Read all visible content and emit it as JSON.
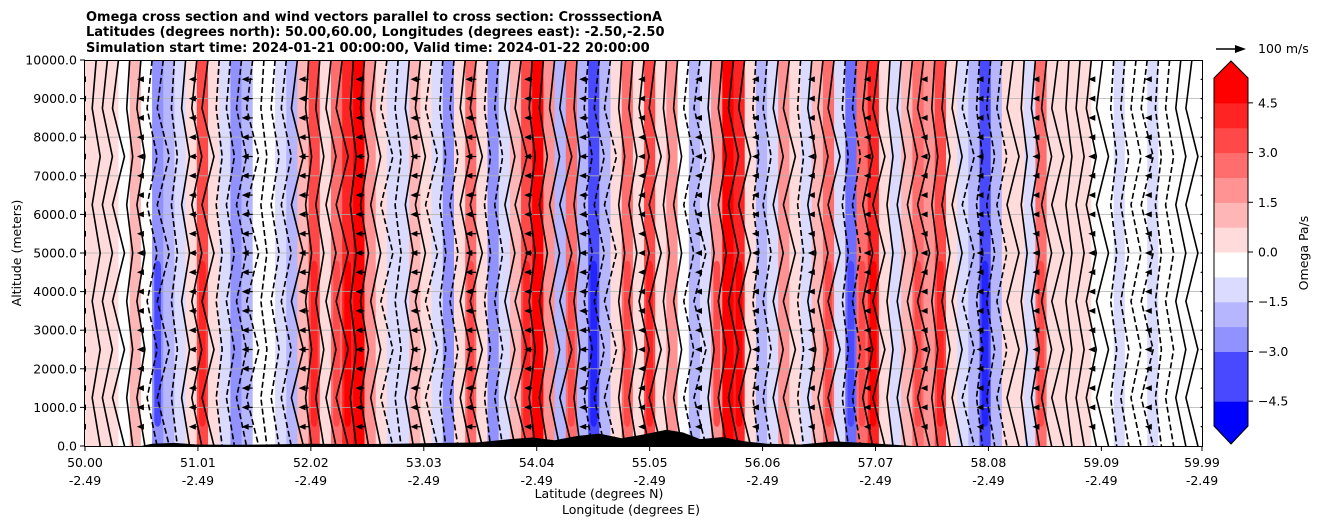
{
  "chart_data": {
    "type": "heatmap",
    "title_lines": [
      "Omega cross section and wind vectors parallel to cross section: CrosssectionA",
      "Latitudes (degrees north): 50.00,60.00, Longitudes (degrees east): -2.50,-2.50",
      "Simulation start time: 2024-01-21 00:00:00, Valid time: 2024-01-22 20:00:00"
    ],
    "xlabel_lines": [
      "Latitude (degrees N)",
      "Longitude (degrees E)"
    ],
    "ylabel": "Altitude (meters)",
    "x_ticks": [
      {
        "lat": "50.00",
        "lon": "-2.49",
        "value": 50.0
      },
      {
        "lat": "51.01",
        "lon": "-2.49",
        "value": 51.01
      },
      {
        "lat": "52.02",
        "lon": "-2.49",
        "value": 52.02
      },
      {
        "lat": "53.03",
        "lon": "-2.49",
        "value": 53.03
      },
      {
        "lat": "54.04",
        "lon": "-2.49",
        "value": 54.04
      },
      {
        "lat": "55.05",
        "lon": "-2.49",
        "value": 55.05
      },
      {
        "lat": "56.06",
        "lon": "-2.49",
        "value": 56.06
      },
      {
        "lat": "57.07",
        "lon": "-2.49",
        "value": 57.07
      },
      {
        "lat": "58.08",
        "lon": "-2.49",
        "value": 58.08
      },
      {
        "lat": "59.09",
        "lon": "-2.49",
        "value": 59.09
      },
      {
        "lat": "59.99",
        "lon": "-2.49",
        "value": 59.99
      }
    ],
    "y_ticks": [
      {
        "label": "0.0",
        "value": 0
      },
      {
        "label": "1000.0",
        "value": 1000
      },
      {
        "label": "2000.0",
        "value": 2000
      },
      {
        "label": "3000.0",
        "value": 3000
      },
      {
        "label": "4000.0",
        "value": 4000
      },
      {
        "label": "5000.0",
        "value": 5000
      },
      {
        "label": "6000.0",
        "value": 6000
      },
      {
        "label": "7000.0",
        "value": 7000
      },
      {
        "label": "8000.0",
        "value": 8000
      },
      {
        "label": "9000.0",
        "value": 9000
      },
      {
        "label": "10000.0",
        "value": 10000
      }
    ],
    "xlim": [
      50.0,
      59.99
    ],
    "ylim": [
      0,
      10000
    ],
    "grid": "horizontal",
    "colorbar": {
      "label": "Omega Pa/s",
      "vmin": -5.25,
      "vmax": 5.25,
      "extend": "both",
      "ticks": [
        {
          "label": "4.5",
          "value": 4.5
        },
        {
          "label": "3.0",
          "value": 3.0
        },
        {
          "label": "1.5",
          "value": 1.5
        },
        {
          "label": "0.0",
          "value": 0.0
        },
        {
          "label": "−1.5",
          "value": -1.5
        },
        {
          "label": "−3.0",
          "value": -3.0
        },
        {
          "label": "−4.5",
          "value": -4.5
        }
      ],
      "colors": {
        "negative": "#0000ff",
        "zero": "#ffffff",
        "positive": "#ff0000"
      }
    },
    "quiver_key": {
      "label": "100 m/s",
      "speed": 100
    },
    "omega_columns": [
      {
        "lat": 50.0,
        "value": 0.4
      },
      {
        "lat": 50.1,
        "value": 0.6
      },
      {
        "lat": 50.2,
        "value": 0.9
      },
      {
        "lat": 50.3,
        "value": 0.2
      },
      {
        "lat": 50.4,
        "value": 1.6
      },
      {
        "lat": 50.5,
        "value": 0.1
      },
      {
        "lat": 50.6,
        "value": -2.6
      },
      {
        "lat": 50.7,
        "value": -1.4
      },
      {
        "lat": 50.8,
        "value": -0.6
      },
      {
        "lat": 50.9,
        "value": 1.0
      },
      {
        "lat": 51.0,
        "value": 3.4
      },
      {
        "lat": 51.1,
        "value": 0.8
      },
      {
        "lat": 51.2,
        "value": -0.9
      },
      {
        "lat": 51.3,
        "value": -2.2
      },
      {
        "lat": 51.4,
        "value": -1.2
      },
      {
        "lat": 51.5,
        "value": -0.3
      },
      {
        "lat": 51.6,
        "value": 0.2
      },
      {
        "lat": 51.7,
        "value": -0.4
      },
      {
        "lat": 51.8,
        "value": -1.6
      },
      {
        "lat": 51.9,
        "value": 1.8
      },
      {
        "lat": 52.0,
        "value": 3.6
      },
      {
        "lat": 52.1,
        "value": 0.9
      },
      {
        "lat": 52.2,
        "value": 2.8
      },
      {
        "lat": 52.3,
        "value": 4.6
      },
      {
        "lat": 52.4,
        "value": 5.4
      },
      {
        "lat": 52.5,
        "value": 2.4
      },
      {
        "lat": 52.6,
        "value": 0.6
      },
      {
        "lat": 52.7,
        "value": -1.1
      },
      {
        "lat": 52.8,
        "value": -0.5
      },
      {
        "lat": 52.9,
        "value": 1.2
      },
      {
        "lat": 53.0,
        "value": 0.4
      },
      {
        "lat": 53.1,
        "value": -0.9
      },
      {
        "lat": 53.2,
        "value": -1.9
      },
      {
        "lat": 53.3,
        "value": 0.8
      },
      {
        "lat": 53.4,
        "value": 3.1
      },
      {
        "lat": 53.5,
        "value": 0.5
      },
      {
        "lat": 53.6,
        "value": -2.0
      },
      {
        "lat": 53.7,
        "value": -0.6
      },
      {
        "lat": 53.8,
        "value": 1.4
      },
      {
        "lat": 53.9,
        "value": 3.8
      },
      {
        "lat": 54.0,
        "value": 5.2
      },
      {
        "lat": 54.1,
        "value": 2.2
      },
      {
        "lat": 54.2,
        "value": -1.2
      },
      {
        "lat": 54.3,
        "value": 3.3
      },
      {
        "lat": 54.4,
        "value": -1.5
      },
      {
        "lat": 54.5,
        "value": -3.6
      },
      {
        "lat": 54.6,
        "value": -1.4
      },
      {
        "lat": 54.7,
        "value": 0.7
      },
      {
        "lat": 54.8,
        "value": 2.9
      },
      {
        "lat": 54.9,
        "value": 0.9
      },
      {
        "lat": 55.0,
        "value": 3.8
      },
      {
        "lat": 55.1,
        "value": 1.0
      },
      {
        "lat": 55.2,
        "value": 2.2
      },
      {
        "lat": 55.3,
        "value": 0.3
      },
      {
        "lat": 55.4,
        "value": -1.6
      },
      {
        "lat": 55.5,
        "value": -0.6
      },
      {
        "lat": 55.6,
        "value": 2.6
      },
      {
        "lat": 55.7,
        "value": 5.1
      },
      {
        "lat": 55.8,
        "value": 4.2
      },
      {
        "lat": 55.9,
        "value": 1.1
      },
      {
        "lat": 56.0,
        "value": -1.5
      },
      {
        "lat": 56.1,
        "value": -0.4
      },
      {
        "lat": 56.2,
        "value": 2.3
      },
      {
        "lat": 56.3,
        "value": 0.4
      },
      {
        "lat": 56.4,
        "value": -0.8
      },
      {
        "lat": 56.5,
        "value": 1.3
      },
      {
        "lat": 56.6,
        "value": 2.9
      },
      {
        "lat": 56.7,
        "value": -0.7
      },
      {
        "lat": 56.8,
        "value": -3.2
      },
      {
        "lat": 56.9,
        "value": 2.9
      },
      {
        "lat": 57.0,
        "value": 4.2
      },
      {
        "lat": 57.1,
        "value": 1.0
      },
      {
        "lat": 57.2,
        "value": -1.0
      },
      {
        "lat": 57.3,
        "value": 1.8
      },
      {
        "lat": 57.4,
        "value": 3.2
      },
      {
        "lat": 57.5,
        "value": 2.1
      },
      {
        "lat": 57.6,
        "value": 3.6
      },
      {
        "lat": 57.7,
        "value": 0.6
      },
      {
        "lat": 57.8,
        "value": -0.4
      },
      {
        "lat": 57.9,
        "value": -1.4
      },
      {
        "lat": 58.0,
        "value": -3.9
      },
      {
        "lat": 58.1,
        "value": -1.6
      },
      {
        "lat": 58.2,
        "value": 0.5
      },
      {
        "lat": 58.3,
        "value": 1.0
      },
      {
        "lat": 58.4,
        "value": -0.5
      },
      {
        "lat": 58.5,
        "value": 3.1
      },
      {
        "lat": 58.6,
        "value": 1.1
      },
      {
        "lat": 58.7,
        "value": 0.6
      },
      {
        "lat": 58.8,
        "value": 0.8
      },
      {
        "lat": 58.9,
        "value": 0.5
      },
      {
        "lat": 59.0,
        "value": 0.3
      },
      {
        "lat": 59.1,
        "value": -0.2
      },
      {
        "lat": 59.2,
        "value": -0.6
      },
      {
        "lat": 59.3,
        "value": -0.3
      },
      {
        "lat": 59.4,
        "value": 0.1
      },
      {
        "lat": 59.5,
        "value": -0.9
      },
      {
        "lat": 59.6,
        "value": -0.3
      },
      {
        "lat": 59.7,
        "value": 0.2
      },
      {
        "lat": 59.8,
        "value": 0.1
      },
      {
        "lat": 59.9,
        "value": 0.0
      }
    ],
    "terrain": [
      {
        "lat": 50.0,
        "height": 0
      },
      {
        "lat": 50.5,
        "height": 0
      },
      {
        "lat": 50.6,
        "height": 60
      },
      {
        "lat": 50.8,
        "height": 80
      },
      {
        "lat": 51.0,
        "height": 40
      },
      {
        "lat": 51.3,
        "height": 30
      },
      {
        "lat": 51.6,
        "height": 40
      },
      {
        "lat": 52.0,
        "height": 60
      },
      {
        "lat": 52.4,
        "height": 50
      },
      {
        "lat": 52.8,
        "height": 60
      },
      {
        "lat": 53.2,
        "height": 80
      },
      {
        "lat": 53.5,
        "height": 90
      },
      {
        "lat": 53.8,
        "height": 180
      },
      {
        "lat": 54.0,
        "height": 220
      },
      {
        "lat": 54.2,
        "height": 150
      },
      {
        "lat": 54.4,
        "height": 260
      },
      {
        "lat": 54.6,
        "height": 320
      },
      {
        "lat": 54.8,
        "height": 200
      },
      {
        "lat": 55.0,
        "height": 300
      },
      {
        "lat": 55.2,
        "height": 420
      },
      {
        "lat": 55.35,
        "height": 350
      },
      {
        "lat": 55.5,
        "height": 180
      },
      {
        "lat": 55.7,
        "height": 230
      },
      {
        "lat": 55.9,
        "height": 120
      },
      {
        "lat": 56.1,
        "height": 60
      },
      {
        "lat": 56.4,
        "height": 40
      },
      {
        "lat": 56.7,
        "height": 120
      },
      {
        "lat": 56.9,
        "height": 90
      },
      {
        "lat": 57.1,
        "height": 60
      },
      {
        "lat": 57.3,
        "height": 20
      },
      {
        "lat": 57.4,
        "height": 0
      },
      {
        "lat": 59.99,
        "height": 0
      }
    ],
    "wind_u": [
      {
        "lat": 50.0,
        "speed": -30
      },
      {
        "lat": 50.5,
        "speed": -20
      },
      {
        "lat": 51.0,
        "speed": -40
      },
      {
        "lat": 51.5,
        "speed": -55
      },
      {
        "lat": 52.0,
        "speed": -50
      },
      {
        "lat": 52.5,
        "speed": -45
      },
      {
        "lat": 53.0,
        "speed": -50
      },
      {
        "lat": 53.5,
        "speed": -55
      },
      {
        "lat": 54.0,
        "speed": -40
      },
      {
        "lat": 54.5,
        "speed": -45
      },
      {
        "lat": 55.0,
        "speed": -30
      },
      {
        "lat": 55.5,
        "speed": -25
      },
      {
        "lat": 56.0,
        "speed": -20
      },
      {
        "lat": 56.5,
        "speed": -20
      },
      {
        "lat": 57.0,
        "speed": -20
      },
      {
        "lat": 57.5,
        "speed": -15
      },
      {
        "lat": 58.0,
        "speed": -15
      },
      {
        "lat": 58.5,
        "speed": -15
      },
      {
        "lat": 59.0,
        "speed": -15
      },
      {
        "lat": 59.5,
        "speed": -12
      },
      {
        "lat": 59.99,
        "speed": -10
      }
    ]
  }
}
